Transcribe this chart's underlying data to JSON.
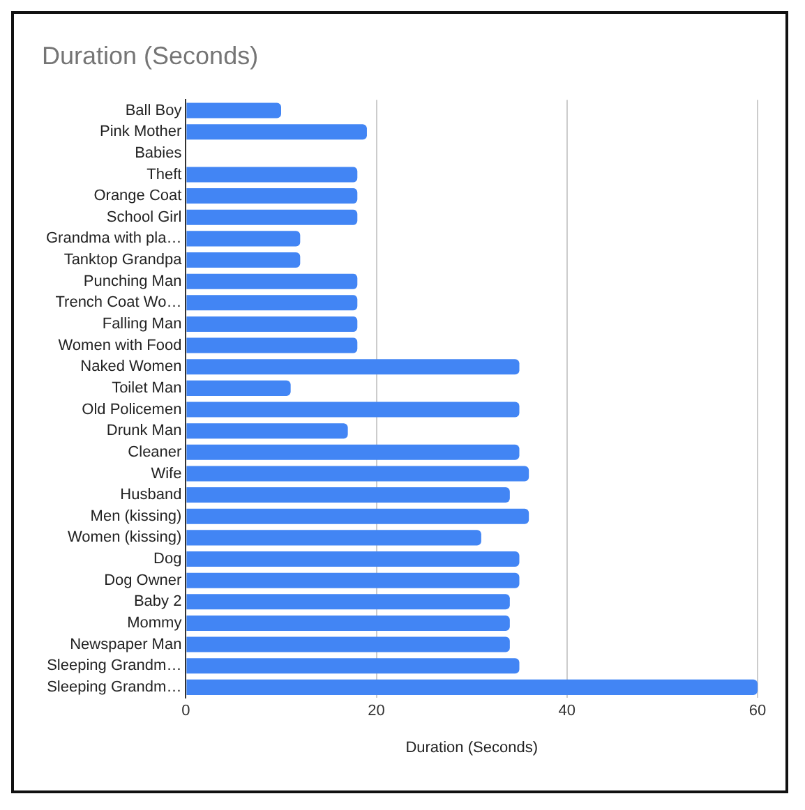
{
  "chart_data": {
    "type": "bar",
    "orientation": "horizontal",
    "title": "Duration (Seconds)",
    "xlabel": "Duration (Seconds)",
    "categories": [
      "Ball Boy",
      "Pink Mother",
      "Babies",
      "Theft",
      "Orange Coat",
      "School Girl",
      "Grandma with pla…",
      "Tanktop Grandpa",
      "Punching Man",
      "Trench Coat Wo…",
      "Falling Man",
      "Women with Food",
      "Naked Women",
      "Toilet Man",
      "Old Policemen",
      "Drunk Man",
      "Cleaner",
      "Wife",
      "Husband",
      "Men (kissing)",
      "Women (kissing)",
      "Dog",
      "Dog Owner",
      "Baby 2",
      "Mommy",
      "Newspaper Man",
      "Sleeping Grandm…",
      "Sleeping Grandm…"
    ],
    "values": [
      10,
      19,
      0,
      18,
      18,
      18,
      12,
      12,
      18,
      18,
      18,
      18,
      35,
      11,
      35,
      17,
      35,
      36,
      34,
      36,
      31,
      35,
      35,
      34,
      34,
      34,
      35,
      60
    ],
    "color": "#4285f4",
    "xlim": [
      0,
      60
    ],
    "xticks": [
      0,
      20,
      40,
      60
    ],
    "grid": "x",
    "legend": false
  }
}
